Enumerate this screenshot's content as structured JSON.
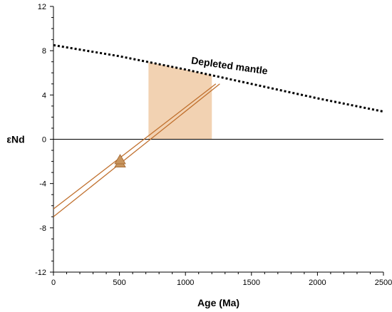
{
  "chart_data": {
    "type": "line",
    "xlabel": "Age (Ma)",
    "ylabel": "εNd",
    "xlim": [
      0,
      2500
    ],
    "ylim": [
      -12,
      12
    ],
    "x_ticks": [
      0,
      500,
      1000,
      1500,
      2000,
      2500
    ],
    "y_ticks": [
      -12,
      -8,
      -4,
      0,
      4,
      8,
      12
    ],
    "x_tick_labels": [
      "0",
      "500",
      "1000",
      "1500",
      "2000",
      "2500"
    ],
    "y_tick_labels": [
      "-12",
      "-8",
      "-4",
      "0",
      "4",
      "8",
      "12"
    ],
    "zero_line": 0,
    "depleted_mantle": {
      "label": "Depleted mantle",
      "style": "dotted",
      "points": [
        [
          0,
          8.5
        ],
        [
          500,
          7.5
        ],
        [
          1000,
          6.3
        ],
        [
          1500,
          5.0
        ],
        [
          2000,
          3.7
        ],
        [
          2500,
          2.5
        ]
      ]
    },
    "model_age_band": {
      "x_range": [
        720,
        1200
      ],
      "color": "#f2d2b2"
    },
    "evolution_lines": [
      {
        "points": [
          [
            0,
            -6.3
          ],
          [
            1230,
            5.0
          ]
        ]
      },
      {
        "points": [
          [
            0,
            -7.0
          ],
          [
            1260,
            5.0
          ]
        ]
      }
    ],
    "samples": [
      {
        "x": 505,
        "y": -2.1
      },
      {
        "x": 505,
        "y": -1.8
      }
    ],
    "colors": {
      "evolution": "#c0702e",
      "marker_fill": "#c8955e",
      "marker_stroke": "#a0622c",
      "band": "#f2d2b2"
    }
  }
}
